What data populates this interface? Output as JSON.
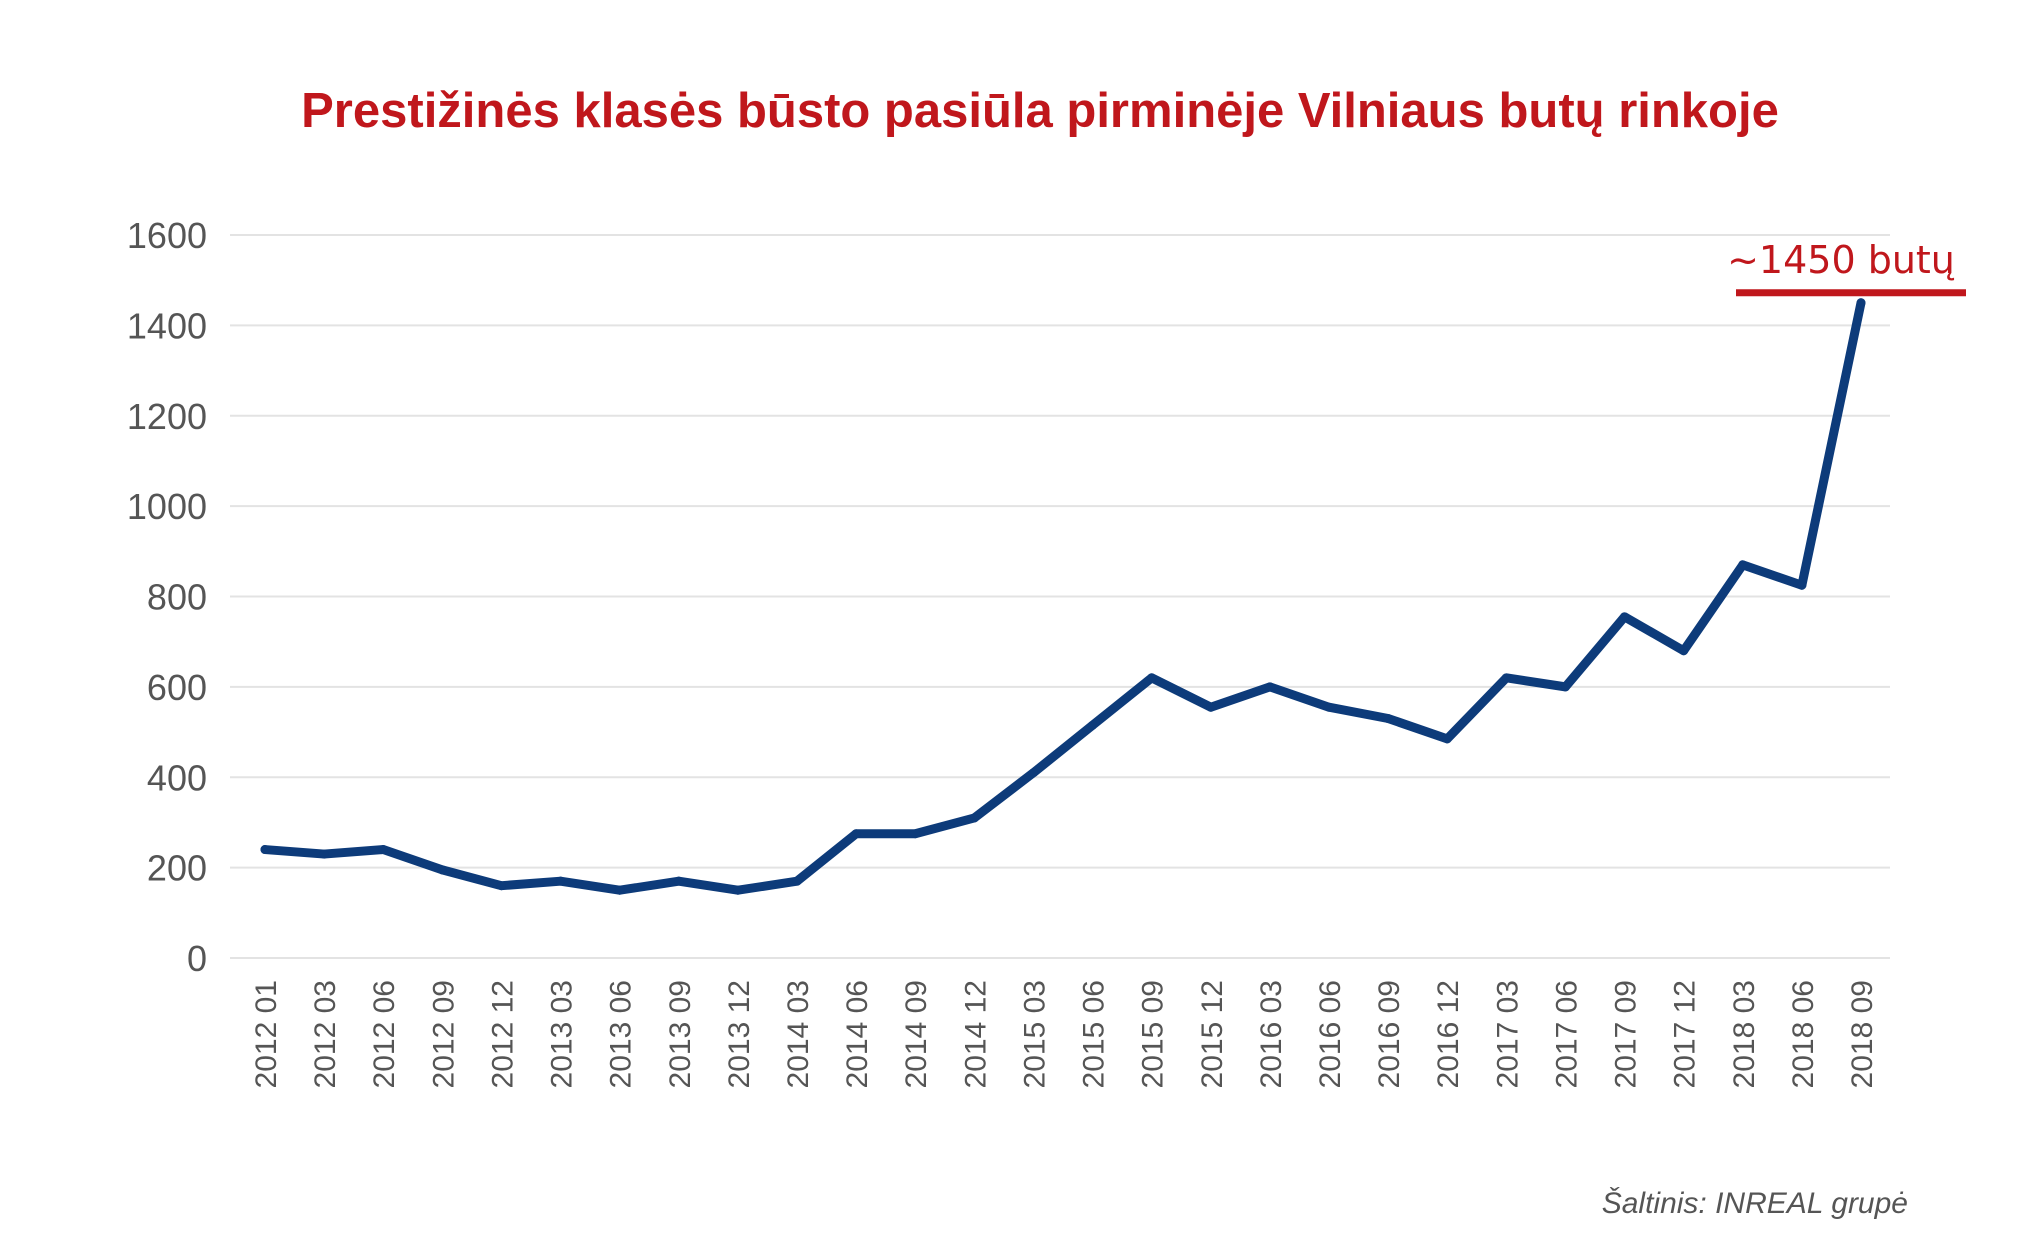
{
  "colors": {
    "title": "#c0171c",
    "line": "#0d3b7a",
    "annotation": "#c0171c",
    "grid": "#e3e3e3",
    "axis_text": "#555555"
  },
  "chart_data": {
    "type": "line",
    "title": "Prestižinės klasės būsto pasiūla pirminėje Vilniaus butų rinkoje",
    "xlabel": "",
    "ylabel": "",
    "ylim": [
      0,
      1600
    ],
    "yticks": [
      "0",
      "200",
      "400",
      "600",
      "800",
      "1000",
      "1200",
      "1400",
      "1600"
    ],
    "grid": true,
    "legend": "none",
    "categories": [
      "2012 01",
      "2012 03",
      "2012 06",
      "2012 09",
      "2012 12",
      "2013 03",
      "2013 06",
      "2013 09",
      "2013 12",
      "2014 03",
      "2014 06",
      "2014 09",
      "2014 12",
      "2015 03",
      "2015 06",
      "2015 09",
      "2015 12",
      "2016 03",
      "2016 06",
      "2016 09",
      "2016 12",
      "2017 03",
      "2017 06",
      "2017 09",
      "2017 12",
      "2018 03",
      "2018 06",
      "2018 09"
    ],
    "values": [
      240,
      230,
      240,
      195,
      160,
      170,
      150,
      170,
      150,
      170,
      275,
      275,
      310,
      410,
      515,
      620,
      555,
      600,
      555,
      530,
      485,
      620,
      600,
      755,
      680,
      870,
      825,
      1450
    ],
    "annotation": {
      "text": "~1450 butų",
      "point": "2018 09"
    },
    "source": "Šaltinis: INREAL grupė"
  }
}
